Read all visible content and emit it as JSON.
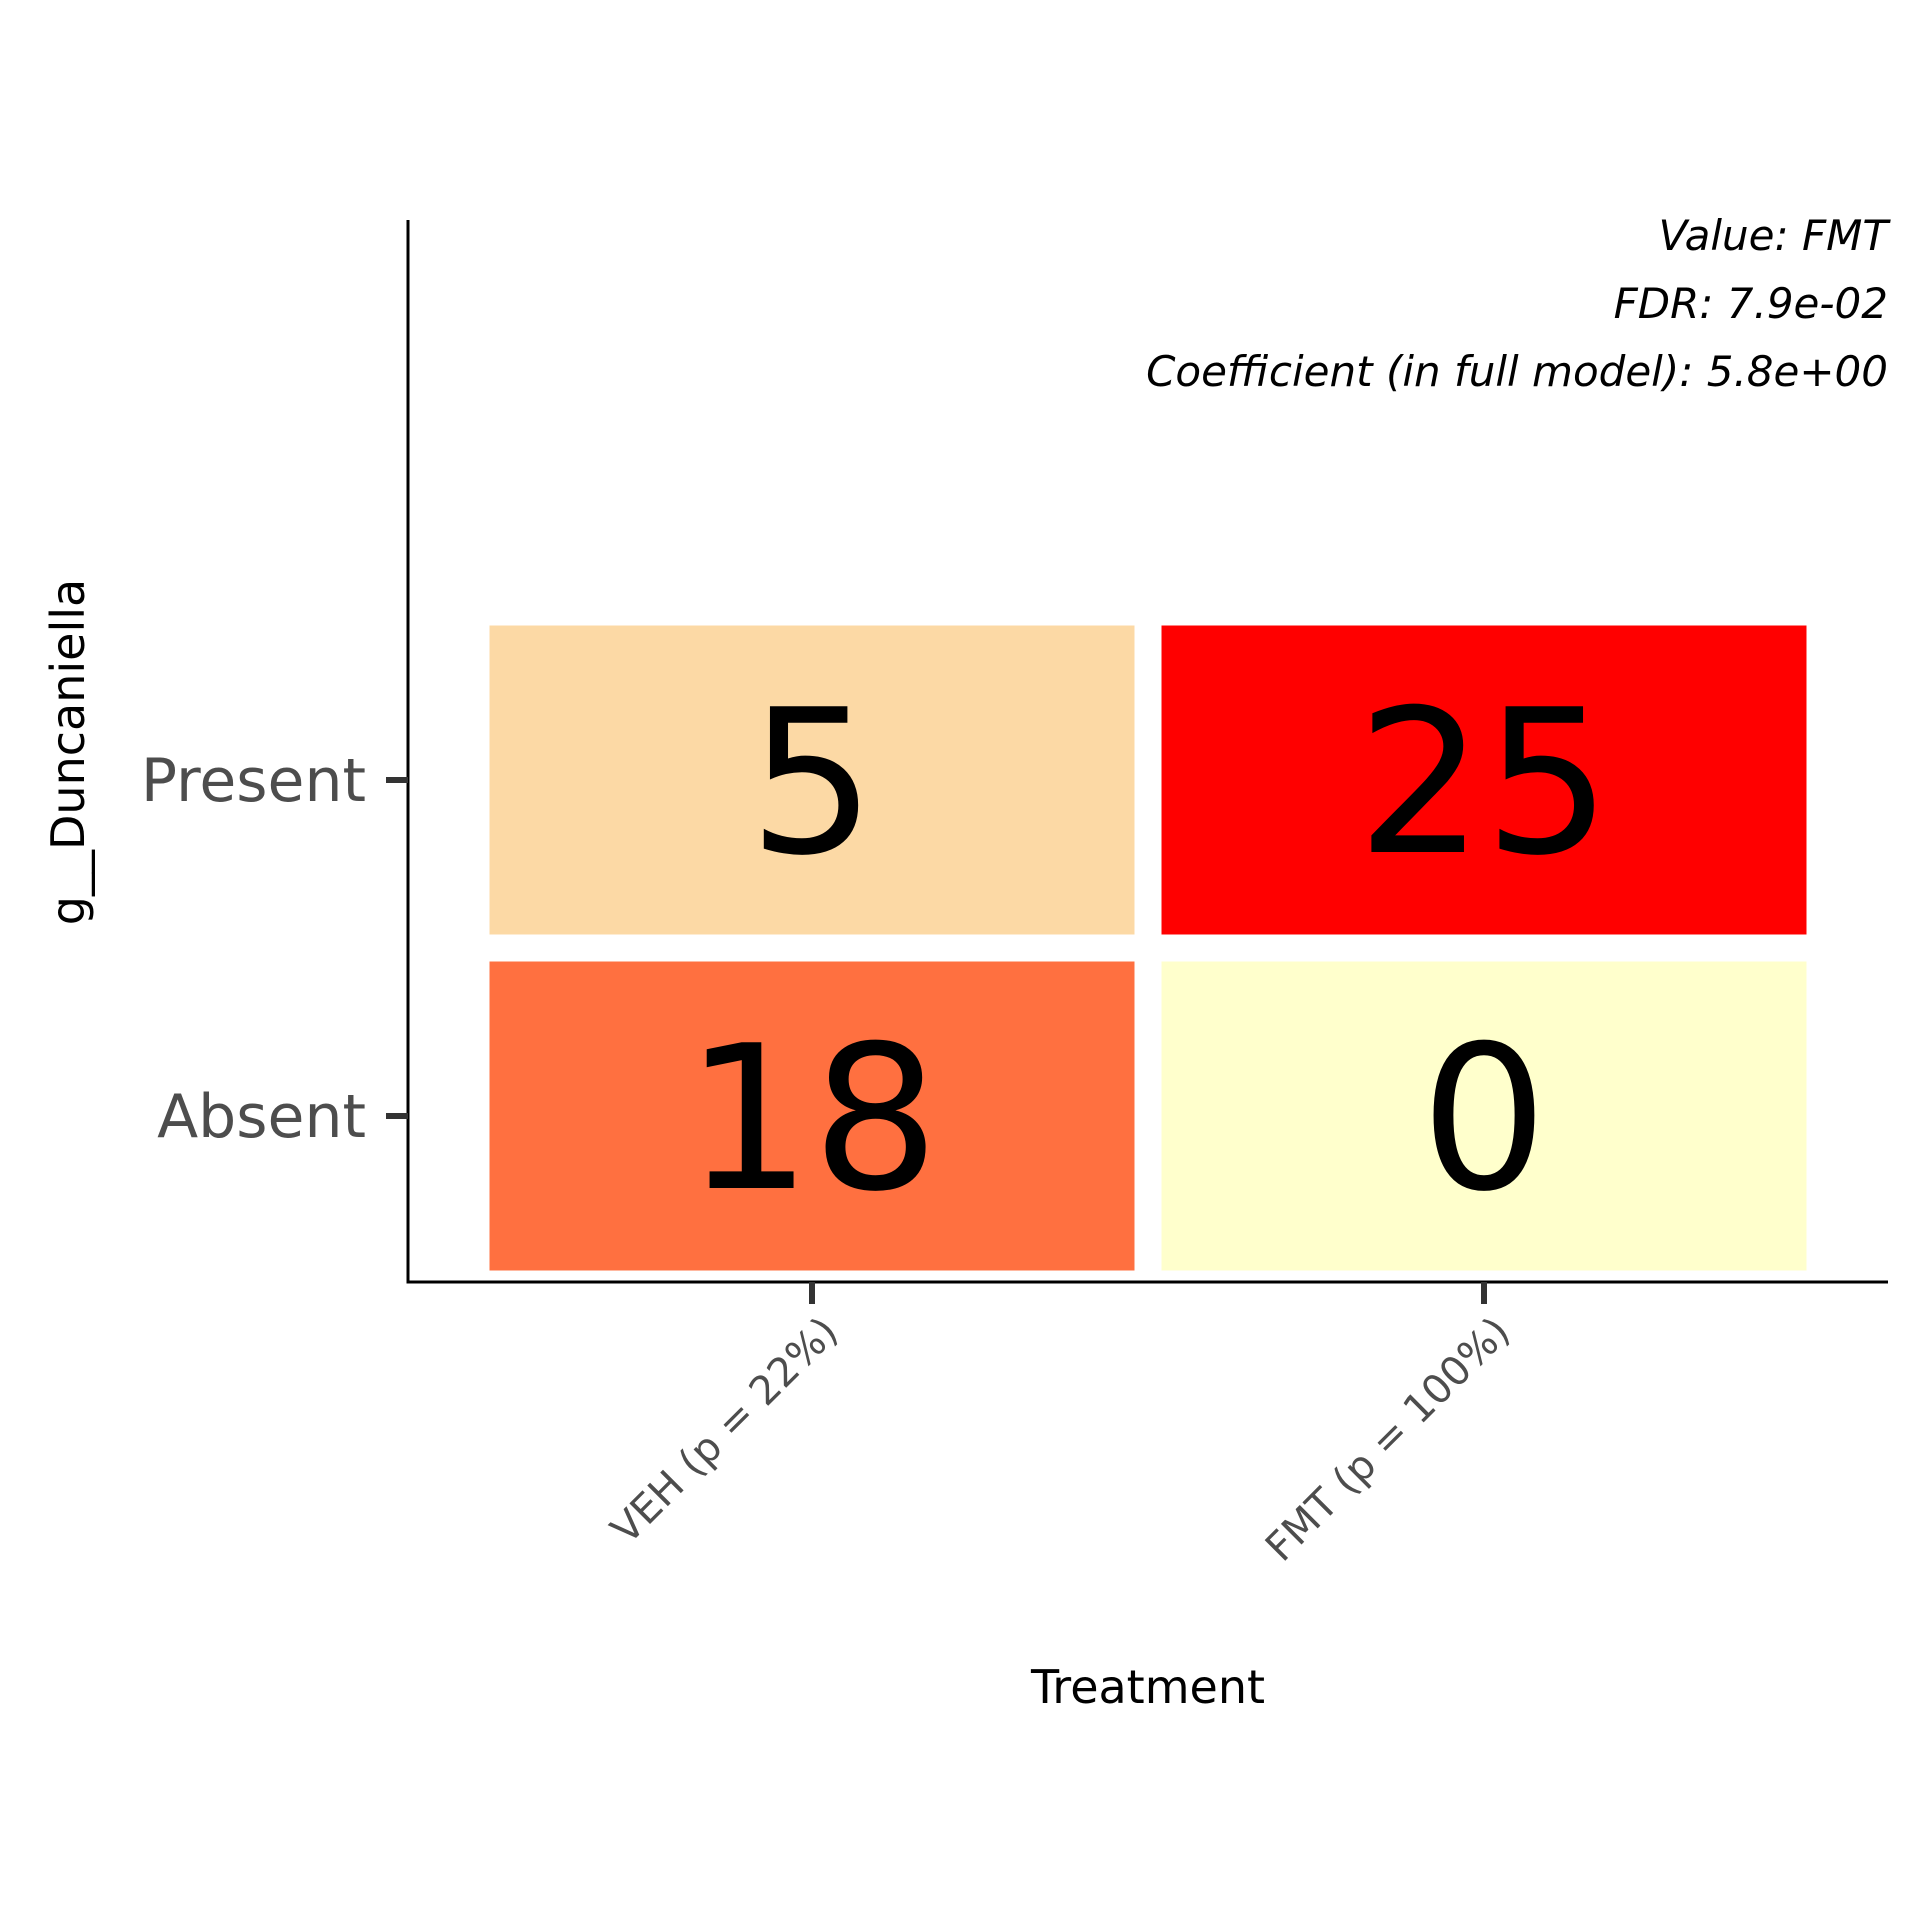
{
  "chart_data": {
    "type": "heatmap",
    "x_categories": [
      "VEH (p = 22%)",
      "FMT (p = 100%)"
    ],
    "y_categories": [
      "Present",
      "Absent"
    ],
    "cells": [
      {
        "x": "VEH (p = 22%)",
        "y": "Present",
        "value": 5,
        "color": "#fcd9a5"
      },
      {
        "x": "FMT (p = 100%)",
        "y": "Present",
        "value": 25,
        "color": "#ff0000"
      },
      {
        "x": "VEH (p = 22%)",
        "y": "Absent",
        "value": 18,
        "color": "#ff7040"
      },
      {
        "x": "FMT (p = 100%)",
        "y": "Absent",
        "value": 0,
        "color": "#ffffcc"
      }
    ],
    "xlabel": "Treatment",
    "ylabel": "g__Duncaniella",
    "annotations": [
      "Value: FMT",
      "FDR: 7.9e-02",
      "Coefficient (in full model): 5.8e+00"
    ],
    "grid": false,
    "legend": "none"
  }
}
